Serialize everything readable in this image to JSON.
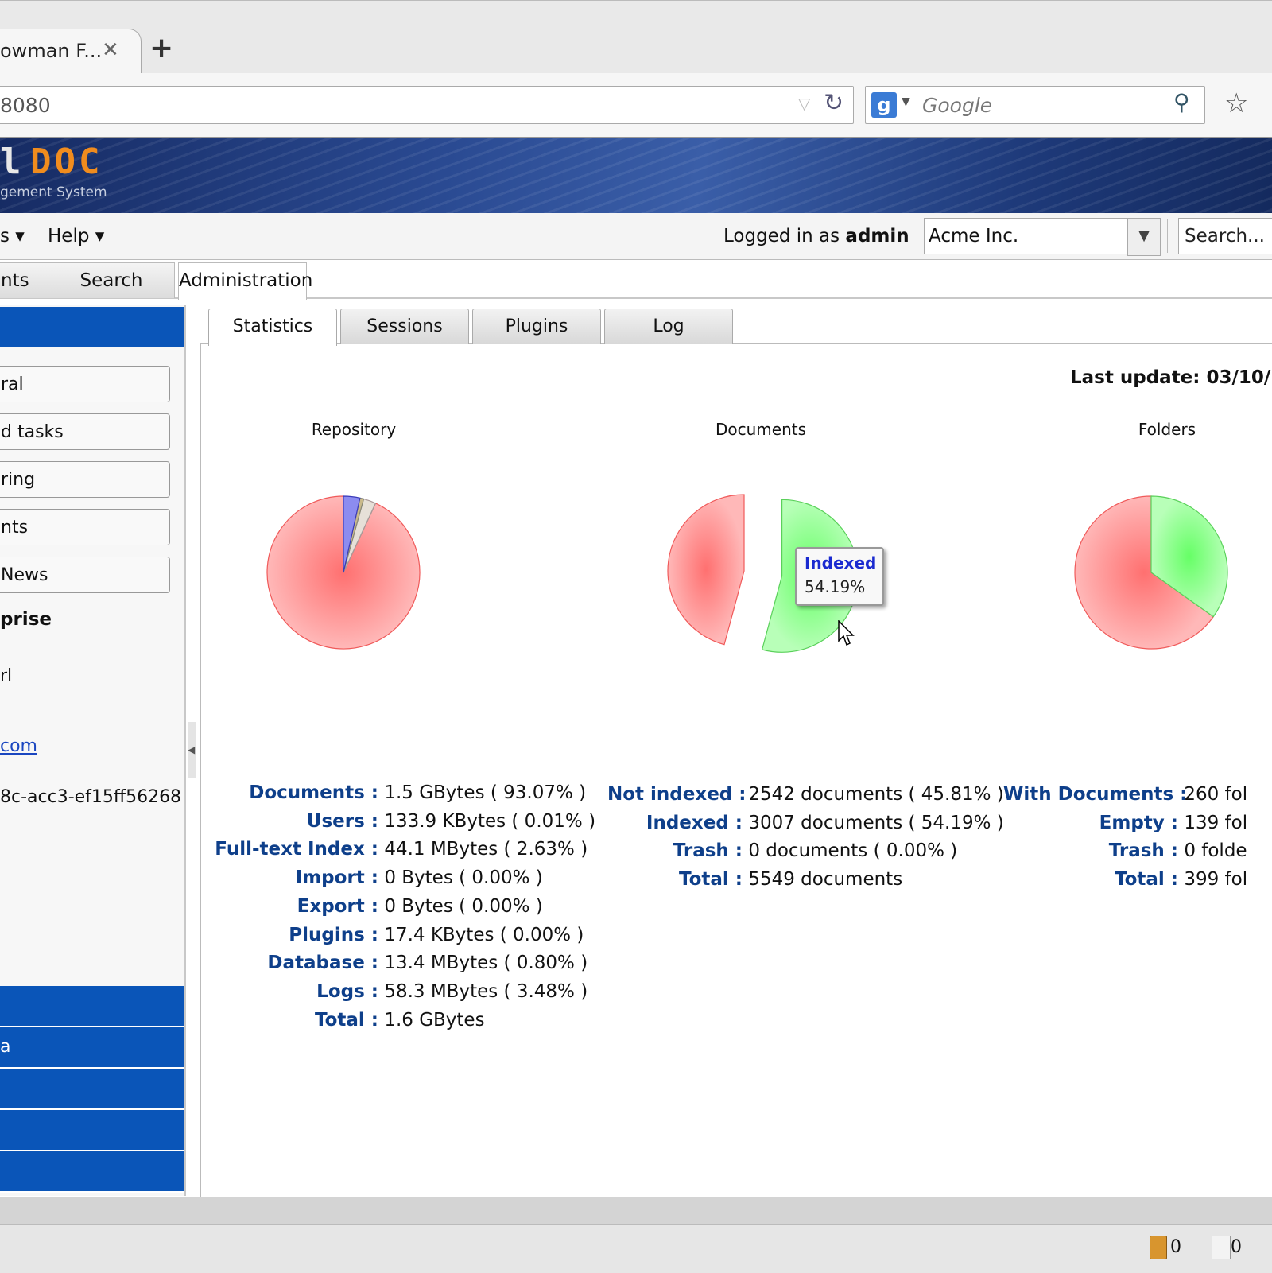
{
  "browser": {
    "tab_title": "owman F...",
    "close_glyph": "✕",
    "newtab_glyph": "+",
    "url": "8080",
    "search_engine_letter": "g",
    "search_placeholder": "Google"
  },
  "header": {
    "logo_left": "l",
    "logo_right": "DOC",
    "logo_subtitle": "gement System"
  },
  "menubar": {
    "menu_partial": "s",
    "help": "Help",
    "logged_prefix": "Logged in as",
    "logged_user": "admin",
    "tenant": "Acme Inc.",
    "search": "Search..."
  },
  "main_tabs": [
    "nts",
    "Search",
    "Administration"
  ],
  "sidebar": {
    "buttons": [
      "ral",
      "d tasks",
      "ring",
      "nts",
      "News"
    ],
    "enterprise_title": "prise",
    "rl": "rl",
    "link": "com",
    "id": "8c-acc3-ef15ff56268",
    "bars": [
      "",
      "a",
      "",
      "",
      ""
    ]
  },
  "sub_tabs": [
    "Statistics",
    "Sessions",
    "Plugins",
    "Log"
  ],
  "last_update": "Last update: 03/10/",
  "charts_titles": {
    "repo": "Repository",
    "docs": "Documents",
    "fold": "Folders"
  },
  "tooltip": {
    "name": "Indexed",
    "value": "54.19%"
  },
  "stats": {
    "repository": [
      {
        "k": "Documents :",
        "v": "1.5 GBytes ( 93.07% )"
      },
      {
        "k": "Users :",
        "v": "133.9 KBytes ( 0.01% )"
      },
      {
        "k": "Full-text Index :",
        "v": "44.1 MBytes ( 2.63% )"
      },
      {
        "k": "Import :",
        "v": "0 Bytes ( 0.00% )"
      },
      {
        "k": "Export :",
        "v": "0 Bytes ( 0.00% )"
      },
      {
        "k": "Plugins :",
        "v": "17.4 KBytes ( 0.00% )"
      },
      {
        "k": "Database :",
        "v": "13.4 MBytes ( 0.80% )"
      },
      {
        "k": "Logs :",
        "v": "58.3 MBytes ( 3.48% )"
      },
      {
        "k": "Total :",
        "v": "1.6 GBytes"
      }
    ],
    "documents": [
      {
        "k": "Not indexed :",
        "v": "2542 documents ( 45.81% )"
      },
      {
        "k": "Indexed :",
        "v": "3007 documents ( 54.19% )"
      },
      {
        "k": "Trash :",
        "v": "0 documents ( 0.00% )"
      },
      {
        "k": "Total :",
        "v": "5549 documents"
      }
    ],
    "folders": [
      {
        "k": "With Documents :",
        "v": "260 fol"
      },
      {
        "k": "Empty :",
        "v": "139 fol"
      },
      {
        "k": "Trash :",
        "v": "0 folde"
      },
      {
        "k": "Total :",
        "v": "399 fol"
      }
    ]
  },
  "chart_data": [
    {
      "type": "pie",
      "title": "Repository",
      "categories": [
        "Documents",
        "Users",
        "Full-text Index",
        "Import",
        "Export",
        "Plugins",
        "Database",
        "Logs"
      ],
      "values": [
        93.07,
        0.01,
        2.63,
        0.0,
        0.0,
        0.0,
        0.8,
        3.48
      ]
    },
    {
      "type": "pie",
      "title": "Documents",
      "categories": [
        "Not indexed",
        "Indexed",
        "Trash"
      ],
      "values": [
        45.81,
        54.19,
        0.0
      ]
    },
    {
      "type": "pie",
      "title": "Folders",
      "categories": [
        "With Documents",
        "Empty",
        "Trash"
      ],
      "values": [
        65.16,
        34.84,
        0.0
      ]
    }
  ],
  "statusbar": {
    "clip_count": "0",
    "lock_count": "0"
  },
  "colors": {
    "accent": "#0a55b8",
    "label": "#0e3f8a",
    "pie_red": "#ff7f7f",
    "pie_green": "#7fff7f"
  }
}
